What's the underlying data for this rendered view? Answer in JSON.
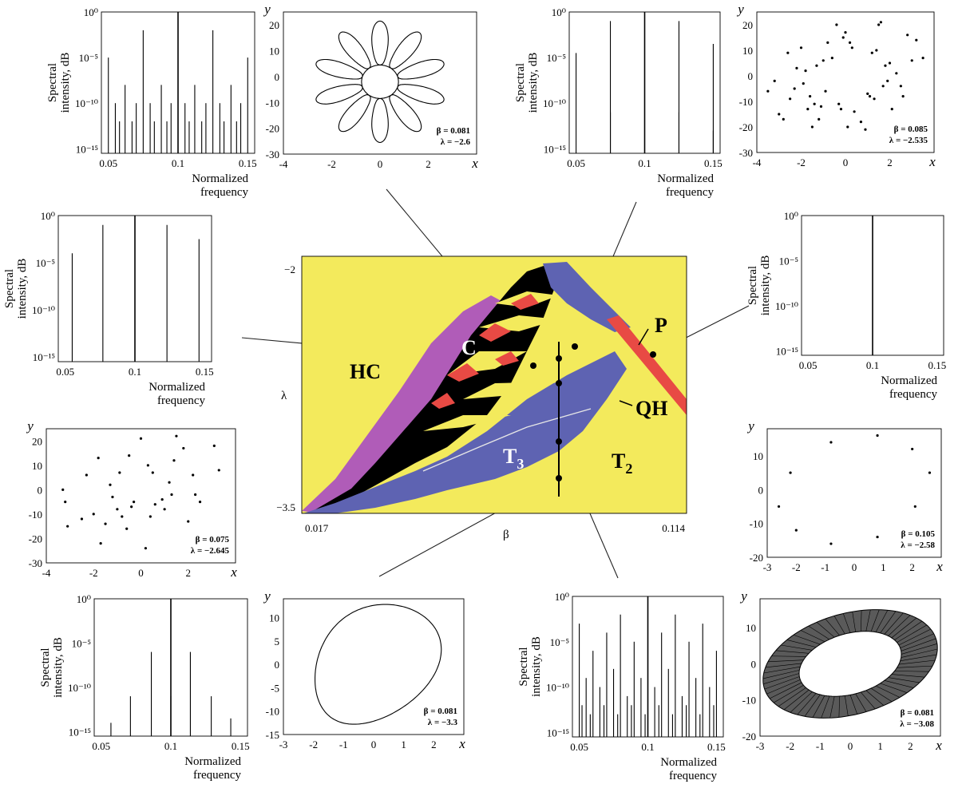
{
  "chart_data": [
    {
      "id": "main",
      "type": "heatmap",
      "xlabel": "β",
      "ylabel": "λ",
      "xlim": [
        0.017,
        0.114
      ],
      "ylim": [
        -3.5,
        -2
      ],
      "xticks": [
        "0.017",
        "0.114"
      ],
      "yticks": [
        "−2",
        "−3.5"
      ],
      "regions": [
        {
          "label": "HC",
          "color": "#b05cb8"
        },
        {
          "label": "C",
          "color": "#000000"
        },
        {
          "label": "P",
          "color": "#e84a44"
        },
        {
          "label": "QH",
          "color": "#5e63b2"
        },
        {
          "label": "T",
          "sub": "3",
          "color": "#5e63b2"
        },
        {
          "label": "T",
          "sub": "2",
          "color": "#f3ea5c"
        }
      ],
      "markers": [
        {
          "x": 0.081,
          "y": -2.6
        },
        {
          "x": 0.085,
          "y": -2.535
        },
        {
          "x": 0.075,
          "y": -2.645
        },
        {
          "x": 0.105,
          "y": -2.58
        },
        {
          "x": 0.081,
          "y": -3.3
        },
        {
          "x": 0.081,
          "y": -3.08
        },
        {
          "x": 0.081,
          "y": -2.68
        }
      ],
      "vertical_line": {
        "x": 0.081,
        "y": [
          -2.6,
          -3.5
        ]
      }
    },
    {
      "id": "spec_tl",
      "type": "bar",
      "ylabel_lines": [
        "Spectral",
        "intensity, dB"
      ],
      "xlabel_lines": [
        "Normalized",
        "frequency"
      ],
      "xticks": [
        "0.05",
        "0.1",
        "0.15"
      ],
      "yticks": [
        "10⁰",
        "10⁻⁵",
        "10⁻¹⁰",
        "10⁻¹⁵"
      ],
      "bars": [
        [
          0.1,
          0
        ],
        [
          0.075,
          -2
        ],
        [
          0.125,
          -2
        ],
        [
          0.05,
          -5
        ],
        [
          0.15,
          -5
        ],
        [
          0.062,
          -8
        ],
        [
          0.088,
          -8
        ],
        [
          0.112,
          -8
        ],
        [
          0.138,
          -8
        ],
        [
          0.055,
          -10
        ],
        [
          0.07,
          -10
        ],
        [
          0.08,
          -10
        ],
        [
          0.095,
          -10
        ],
        [
          0.105,
          -10
        ],
        [
          0.12,
          -10
        ],
        [
          0.13,
          -10
        ],
        [
          0.145,
          -10
        ],
        [
          0.058,
          -12
        ],
        [
          0.067,
          -12
        ],
        [
          0.083,
          -12
        ],
        [
          0.092,
          -12
        ],
        [
          0.108,
          -12
        ],
        [
          0.117,
          -12
        ],
        [
          0.133,
          -12
        ],
        [
          0.142,
          -12
        ]
      ]
    },
    {
      "id": "phase_tl",
      "type": "line",
      "xlabel": "x",
      "ylabel": "y",
      "xlim": [
        -4,
        4
      ],
      "ylim": [
        -30,
        25
      ],
      "xticks": [
        "-4",
        "-2",
        "0",
        "2",
        "x"
      ],
      "yticks": [
        "20",
        "10",
        "0",
        "-10",
        "-20",
        "-30"
      ],
      "params": [
        "β = 0.081",
        "λ = −2.6"
      ],
      "note": "ten-lobe flower-shaped closed curve"
    },
    {
      "id": "spec_tr",
      "type": "bar",
      "ylabel_lines": [
        "Spectral",
        "intensity, dB"
      ],
      "xlabel_lines": [
        "Normalized",
        "frequency"
      ],
      "xticks": [
        "0.05",
        "0.1",
        "0.15"
      ],
      "yticks": [
        "10⁰",
        "10⁻⁵",
        "10⁻¹⁰",
        "10⁻¹⁵"
      ],
      "bars": [
        [
          0.1,
          0
        ],
        [
          0.075,
          -1
        ],
        [
          0.125,
          -1
        ],
        [
          0.05,
          -4.5
        ],
        [
          0.15,
          -3.5
        ],
        [
          0.075,
          -11
        ],
        [
          0.125,
          -11
        ],
        [
          0.15,
          -13
        ]
      ]
    },
    {
      "id": "phase_tr",
      "type": "scatter",
      "xlabel": "x",
      "ylabel": "y",
      "xlim": [
        -4,
        4
      ],
      "ylim": [
        -30,
        25
      ],
      "xticks": [
        "-4",
        "-2",
        "0",
        "2",
        "x"
      ],
      "yticks": [
        "20",
        "10",
        "0",
        "-10",
        "-20",
        "-30"
      ],
      "params": [
        "β = 0.085",
        "λ = −2.535"
      ],
      "points": [
        [
          -3.5,
          -6
        ],
        [
          -3.2,
          -2
        ],
        [
          -3,
          -15
        ],
        [
          -2.8,
          -17
        ],
        [
          -2.6,
          9
        ],
        [
          -2.5,
          -9
        ],
        [
          -2.3,
          -5
        ],
        [
          -2.2,
          3
        ],
        [
          -2,
          11
        ],
        [
          -1.9,
          -3
        ],
        [
          -1.8,
          2
        ],
        [
          -1.7,
          -13
        ],
        [
          -1.6,
          -8
        ],
        [
          -1.5,
          -20
        ],
        [
          -1.4,
          -11
        ],
        [
          -1.3,
          4
        ],
        [
          -1.2,
          -17
        ],
        [
          -1.1,
          -12
        ],
        [
          -1,
          6
        ],
        [
          -0.9,
          -6
        ],
        [
          -0.8,
          13
        ],
        [
          -0.6,
          7
        ],
        [
          -0.4,
          20
        ],
        [
          -0.3,
          -11
        ],
        [
          -0.2,
          -13
        ],
        [
          -0.1,
          15
        ],
        [
          0,
          17
        ],
        [
          0.1,
          -20
        ],
        [
          0.2,
          13
        ],
        [
          0.3,
          11
        ],
        [
          0.4,
          -14
        ],
        [
          0.7,
          -18
        ],
        [
          0.9,
          -21
        ],
        [
          1,
          -7
        ],
        [
          1.1,
          -8
        ],
        [
          1.2,
          9
        ],
        [
          1.3,
          -9
        ],
        [
          1.4,
          10
        ],
        [
          1.5,
          20
        ],
        [
          1.6,
          21
        ],
        [
          1.7,
          -4
        ],
        [
          1.8,
          4
        ],
        [
          1.9,
          -2
        ],
        [
          2,
          5
        ],
        [
          2.1,
          -13
        ],
        [
          2.3,
          1
        ],
        [
          2.5,
          -4
        ],
        [
          2.6,
          -8
        ],
        [
          2.8,
          16
        ],
        [
          3,
          6
        ],
        [
          3.2,
          14
        ],
        [
          3.5,
          7
        ]
      ]
    },
    {
      "id": "spec_ml",
      "type": "bar",
      "ylabel_lines": [
        "Spectral",
        "intensity, dB"
      ],
      "xlabel_lines": [
        "Normalized",
        "frequency"
      ],
      "xticks": [
        "0.05",
        "0.1",
        "0.15"
      ],
      "yticks": [
        "10⁰",
        "10⁻⁵",
        "10⁻¹⁰",
        "10⁻¹⁵"
      ],
      "bars": [
        [
          0.1,
          0
        ],
        [
          0.077,
          -1
        ],
        [
          0.123,
          -1
        ],
        [
          0.055,
          -4
        ],
        [
          0.146,
          -2.5
        ]
      ]
    },
    {
      "id": "spec_mr",
      "type": "bar",
      "ylabel_lines": [
        "Spectral",
        "intensity, dB"
      ],
      "xlabel_lines": [
        "Normalized",
        "frequency"
      ],
      "xticks": [
        "0.05",
        "0.1",
        "0.15"
      ],
      "yticks": [
        "10⁰",
        "10⁻⁵",
        "10⁻¹⁰",
        "10⁻¹⁵"
      ],
      "bars": [
        [
          0.1,
          0
        ]
      ]
    },
    {
      "id": "phase_ml",
      "type": "scatter",
      "xlabel": "x",
      "ylabel": "y",
      "xlim": [
        -4,
        4
      ],
      "ylim": [
        -30,
        25
      ],
      "xticks": [
        "-4",
        "-2",
        "0",
        "2",
        "x"
      ],
      "yticks": [
        "20",
        "10",
        "0",
        "-10",
        "-20",
        "-30"
      ],
      "params": [
        "β = 0.075",
        "λ = −2.645"
      ],
      "points": [
        [
          -3.3,
          0
        ],
        [
          -3.2,
          -5
        ],
        [
          -3.1,
          -15
        ],
        [
          -2.5,
          -12
        ],
        [
          -2.3,
          6
        ],
        [
          -2,
          -10
        ],
        [
          -1.8,
          13
        ],
        [
          -1.7,
          -22
        ],
        [
          -1.5,
          -14
        ],
        [
          -1.3,
          2
        ],
        [
          -1.2,
          -3
        ],
        [
          -1,
          -8
        ],
        [
          -0.9,
          7
        ],
        [
          -0.8,
          -11
        ],
        [
          -0.6,
          -16
        ],
        [
          -0.5,
          14
        ],
        [
          -0.4,
          -7
        ],
        [
          -0.3,
          -5
        ],
        [
          0,
          21
        ],
        [
          0.2,
          -24
        ],
        [
          0.3,
          10
        ],
        [
          0.4,
          -11
        ],
        [
          0.5,
          7
        ],
        [
          0.6,
          -6
        ],
        [
          0.9,
          -4
        ],
        [
          1,
          -8
        ],
        [
          1.2,
          3
        ],
        [
          1.3,
          -2
        ],
        [
          1.4,
          12
        ],
        [
          1.5,
          22
        ],
        [
          1.8,
          17
        ],
        [
          2,
          -13
        ],
        [
          2.2,
          6
        ],
        [
          2.3,
          -2
        ],
        [
          2.5,
          -5
        ],
        [
          3.1,
          18
        ],
        [
          3.3,
          8
        ]
      ]
    },
    {
      "id": "phase_mr",
      "type": "scatter",
      "xlabel": "x",
      "ylabel": "y",
      "xlim": [
        -3,
        3
      ],
      "ylim": [
        -20,
        18
      ],
      "xticks": [
        "-3",
        "-2",
        "-1",
        "0",
        "1",
        "2",
        "x"
      ],
      "yticks": [
        "10",
        "0",
        "-10",
        "-20"
      ],
      "params": [
        "β = 0.105",
        "λ = −2.58"
      ],
      "points": [
        [
          -2.6,
          -5
        ],
        [
          -2.2,
          5
        ],
        [
          -2,
          -12
        ],
        [
          -0.8,
          14
        ],
        [
          -0.8,
          -16
        ],
        [
          0.8,
          16
        ],
        [
          0.8,
          -14
        ],
        [
          2,
          12
        ],
        [
          2.1,
          -5
        ],
        [
          2.6,
          5
        ]
      ]
    },
    {
      "id": "spec_bl",
      "type": "bar",
      "ylabel_lines": [
        "Spectral",
        "intensity, dB"
      ],
      "xlabel_lines": [
        "Normalized",
        "frequency"
      ],
      "xticks": [
        "0.05",
        "0.1",
        "0.15"
      ],
      "yticks": [
        "10⁰",
        "10⁻⁵",
        "10⁻¹⁰",
        "10⁻¹⁵"
      ],
      "bars": [
        [
          0.1,
          0
        ],
        [
          0.086,
          -6
        ],
        [
          0.114,
          -6
        ],
        [
          0.071,
          -11
        ],
        [
          0.129,
          -11
        ],
        [
          0.1,
          -11
        ],
        [
          0.057,
          -14
        ],
        [
          0.143,
          -13.5
        ]
      ]
    },
    {
      "id": "phase_bl",
      "type": "line",
      "xlabel": "x",
      "ylabel": "y",
      "xlim": [
        -3,
        3
      ],
      "ylim": [
        -15,
        14
      ],
      "xticks": [
        "-3",
        "-2",
        "-1",
        "0",
        "1",
        "2",
        "x"
      ],
      "yticks": [
        "10",
        "5",
        "0",
        "-5",
        "-10",
        "-15"
      ],
      "params": [
        "β = 0.081",
        "λ = −3.3"
      ],
      "note": "single closed oval cycle"
    },
    {
      "id": "spec_br",
      "type": "bar",
      "ylabel_lines": [
        "Spectral",
        "intensity, dB"
      ],
      "xlabel_lines": [
        "Normalized",
        "frequency"
      ],
      "xticks": [
        "0.05",
        "0.1",
        "0.15"
      ],
      "yticks": [
        "10⁰",
        "10⁻⁵",
        "10⁻¹⁰",
        "10⁻¹⁵"
      ],
      "bars": [
        [
          0.1,
          0
        ],
        [
          0.05,
          -3
        ],
        [
          0.06,
          -6
        ],
        [
          0.07,
          -4
        ],
        [
          0.08,
          -2
        ],
        [
          0.09,
          -5
        ],
        [
          0.11,
          -4
        ],
        [
          0.12,
          -2
        ],
        [
          0.13,
          -5
        ],
        [
          0.14,
          -3
        ],
        [
          0.15,
          -6
        ],
        [
          0.055,
          -9
        ],
        [
          0.065,
          -10
        ],
        [
          0.075,
          -8
        ],
        [
          0.085,
          -11
        ],
        [
          0.095,
          -9
        ],
        [
          0.105,
          -10
        ],
        [
          0.115,
          -8
        ],
        [
          0.125,
          -11
        ],
        [
          0.135,
          -9
        ],
        [
          0.145,
          -10
        ],
        [
          0.052,
          -12
        ],
        [
          0.058,
          -13
        ],
        [
          0.068,
          -12
        ],
        [
          0.078,
          -13
        ],
        [
          0.088,
          -12
        ],
        [
          0.098,
          -13
        ],
        [
          0.108,
          -12
        ],
        [
          0.118,
          -13
        ],
        [
          0.128,
          -12
        ],
        [
          0.138,
          -13
        ],
        [
          0.148,
          -12
        ]
      ]
    },
    {
      "id": "phase_br",
      "type": "area",
      "xlabel": "x",
      "ylabel": "y",
      "xlim": [
        -3,
        3
      ],
      "ylim": [
        -20,
        18
      ],
      "xticks": [
        "-3",
        "-2",
        "-1",
        "0",
        "1",
        "2",
        "x"
      ],
      "yticks": [
        "10",
        "0",
        "-10",
        "-20"
      ],
      "params": [
        "β = 0.081",
        "λ = −3.08"
      ],
      "note": "torus band annulus"
    }
  ]
}
